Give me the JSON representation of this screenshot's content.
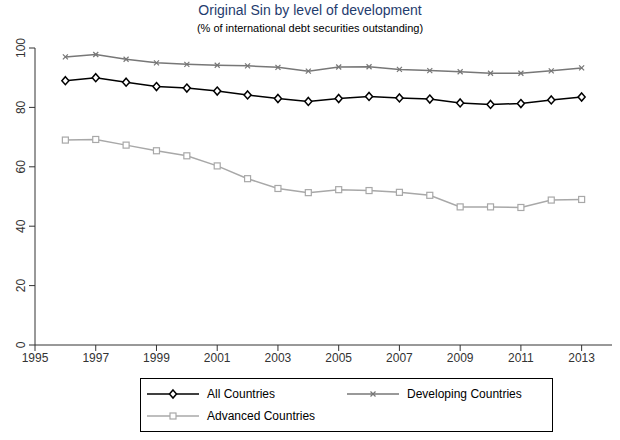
{
  "chart_data": {
    "type": "line",
    "title": "Original Sin by level of development",
    "subtitle": "(% of international debt securities outstanding)",
    "x": [
      1996,
      1997,
      1998,
      1999,
      2000,
      2001,
      2002,
      2003,
      2004,
      2005,
      2006,
      2007,
      2008,
      2009,
      2010,
      2011,
      2012,
      2013
    ],
    "series": [
      {
        "name": "All Countries",
        "color": "#000000",
        "marker": "diamond",
        "values": [
          89,
          90,
          88.5,
          87,
          86.5,
          85.5,
          84.2,
          83,
          82,
          83,
          83.7,
          83.2,
          82.8,
          81.5,
          81,
          81.3,
          82.5,
          83.5
        ]
      },
      {
        "name": "Developing Countries",
        "color": "#777777",
        "marker": "x",
        "values": [
          97,
          97.8,
          96.2,
          95,
          94.5,
          94.2,
          94,
          93.5,
          92.2,
          93.6,
          93.7,
          92.8,
          92.4,
          92,
          91.5,
          91.5,
          92.3,
          93.3
        ]
      },
      {
        "name": "Advanced Countries",
        "color": "#a8a8a8",
        "marker": "square",
        "values": [
          69,
          69.2,
          67.3,
          65.4,
          63.7,
          60.3,
          56,
          52.7,
          51.3,
          52.3,
          52,
          51.4,
          50.4,
          46.5,
          46.5,
          46.3,
          48.8,
          49
        ]
      }
    ],
    "xlim": [
      1995,
      2014
    ],
    "xticks": [
      1995,
      1997,
      1999,
      2001,
      2003,
      2005,
      2007,
      2009,
      2011,
      2013
    ],
    "ylim": [
      0,
      100
    ],
    "yticks": [
      0,
      20,
      40,
      60,
      80,
      100
    ],
    "grid": false,
    "legend": "bottom"
  }
}
